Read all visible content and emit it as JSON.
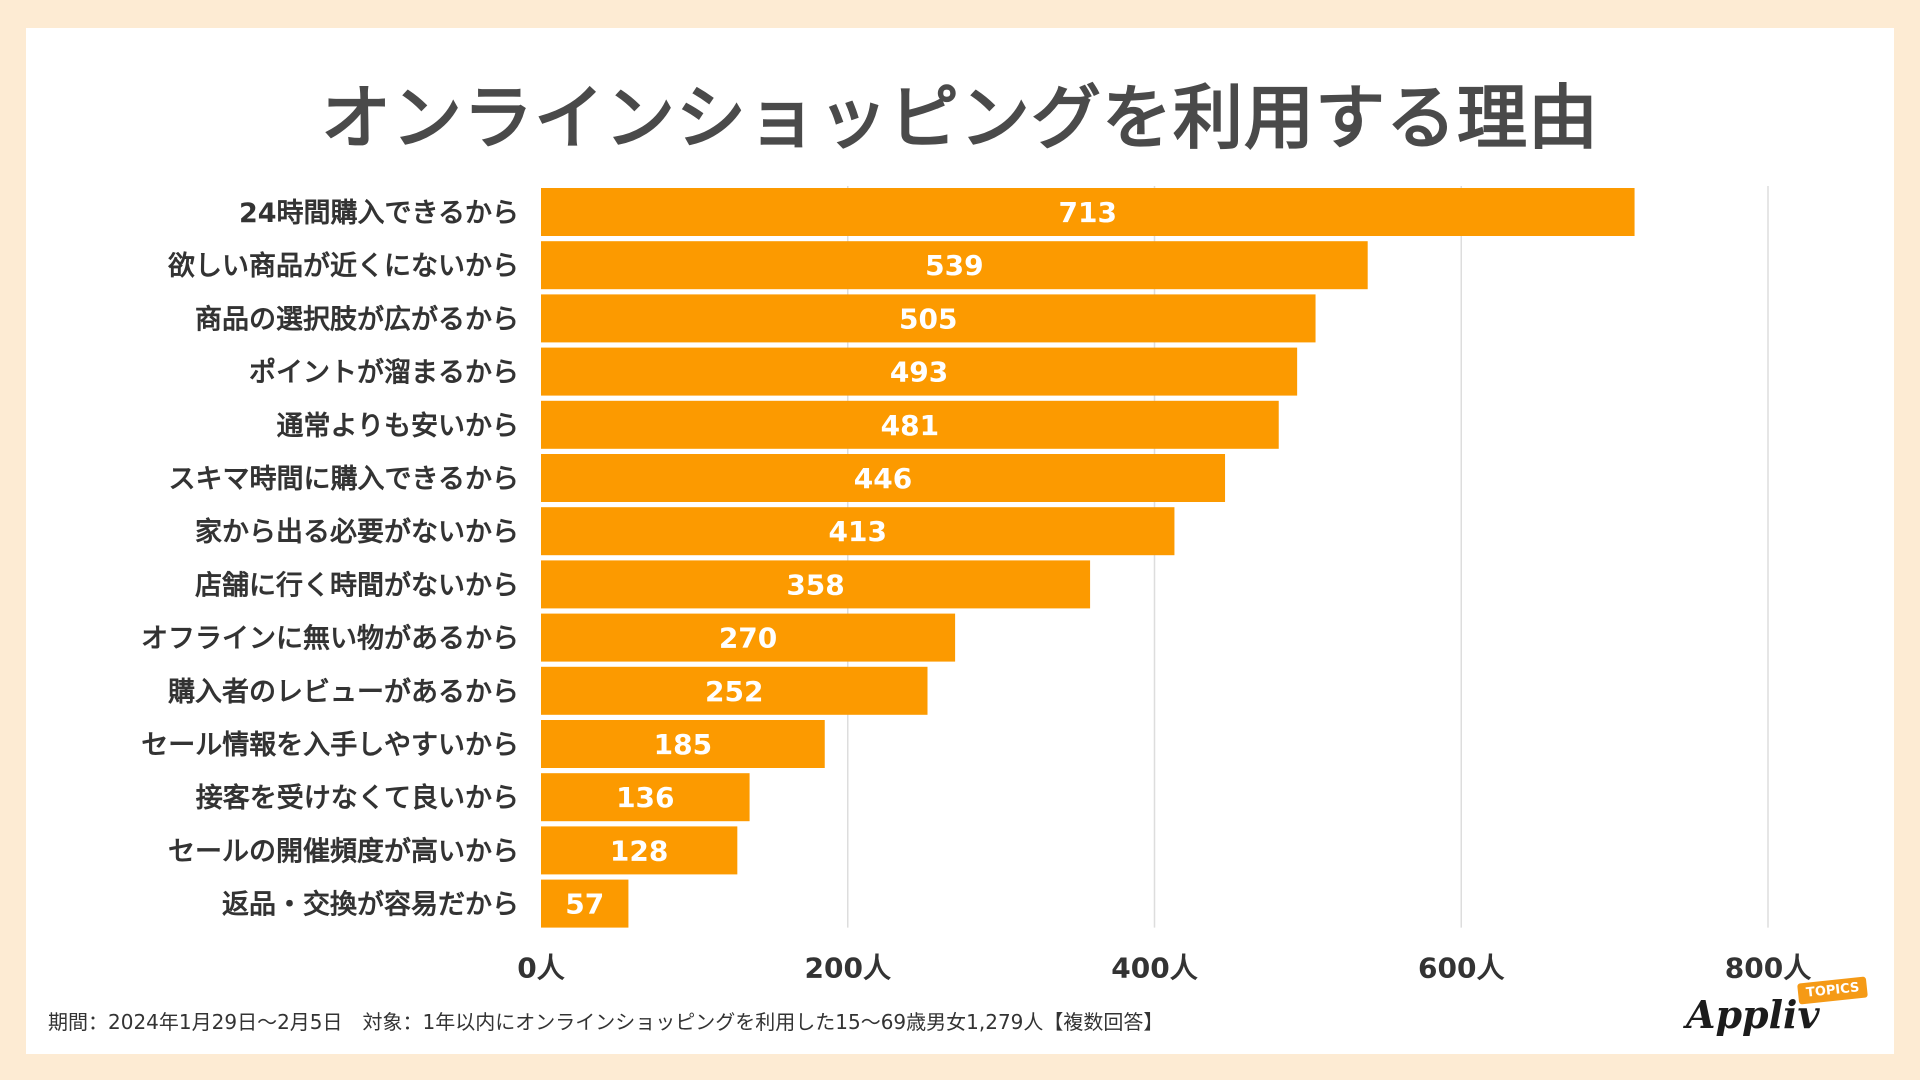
{
  "chart_data": {
    "type": "bar",
    "orientation": "horizontal",
    "title": "オンラインショッピングを利用する理由",
    "categories": [
      "24時間購入できるから",
      "欲しい商品が近くにないから",
      "商品の選択肢が広がるから",
      "ポイントが溜まるから",
      "通常よりも安いから",
      "スキマ時間に購入できるから",
      "家から出る必要がないから",
      "店舗に行く時間がないから",
      "オフラインに無い物があるから",
      "購入者のレビューがあるから",
      "セール情報を入手しやすいから",
      "接客を受けなくて良いから",
      "セールの開催頻度が高いから",
      "返品・交換が容易だから"
    ],
    "values": [
      713,
      539,
      505,
      493,
      481,
      446,
      413,
      358,
      270,
      252,
      185,
      136,
      128,
      57
    ],
    "xlim": [
      0,
      800
    ],
    "xticks": [
      0,
      200,
      400,
      600,
      800
    ],
    "xtick_labels": [
      "0人",
      "200人",
      "400人",
      "600人",
      "800人"
    ],
    "grid": true,
    "bar_color": "#fc9a00",
    "label_color": "#ffffff"
  },
  "footer": {
    "note": "期間：2024年1月29日～2月5日　対象：1年以内にオンラインショッピングを利用した15～69歳男女1,279人【複数回答】"
  },
  "logo": {
    "main": "Appliv",
    "badge": "TOPICS"
  },
  "colors": {
    "background": "#fdebd3",
    "card": "#ffffff",
    "title": "#4a4a4a",
    "text": "#333333",
    "grid": "#dddddd",
    "accent": "#f59a16"
  }
}
